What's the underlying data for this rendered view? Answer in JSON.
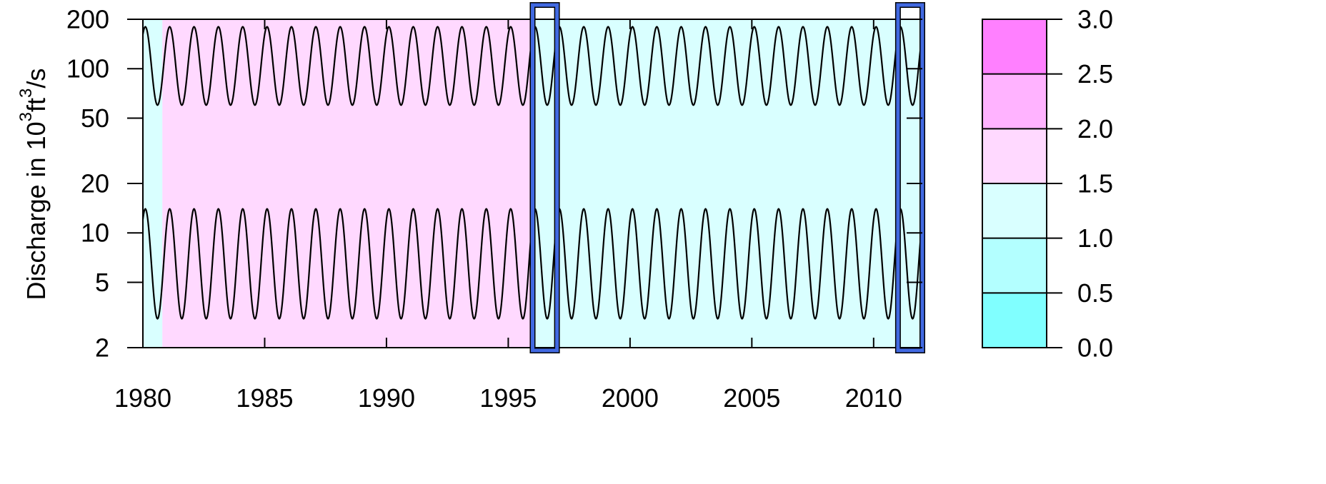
{
  "chart_data": {
    "type": "heatmap",
    "title": "",
    "ylabel": {
      "prefix": "Discharge in 10",
      "sup1": "3",
      "mid": "ft",
      "sup2": "3",
      "suffix": "/s"
    },
    "x": {
      "range": [
        1980,
        2012
      ],
      "ticks": [
        1980,
        1985,
        1990,
        1995,
        2000,
        2005,
        2010
      ],
      "tick_labels": [
        "1980",
        "1985",
        "1990",
        "1995",
        "2000",
        "2005",
        "2010"
      ]
    },
    "y": {
      "scale": "log",
      "range": [
        2,
        200
      ],
      "ticks": [
        2,
        5,
        10,
        20,
        50,
        100,
        200
      ],
      "tick_labels": [
        "2",
        "5",
        "10",
        "20",
        "50",
        "100",
        "200"
      ]
    },
    "colorbar": {
      "levels": [
        0.0,
        0.5,
        1.0,
        1.5,
        2.0,
        2.5,
        3.0
      ],
      "labels": [
        "0.0",
        "0.5",
        "1.0",
        "1.5",
        "2.0",
        "2.5",
        "3.0"
      ],
      "colors": [
        "#80ffff",
        "#b3ffff",
        "#d9ffff",
        "#ffd9ff",
        "#ffb3ff",
        "#ff80ff"
      ]
    },
    "series": [
      {
        "type": "seasonal-cycle",
        "min": 60,
        "max": 180,
        "period_years": 1
      },
      {
        "type": "seasonal-cycle",
        "min": 3,
        "max": 14,
        "period_years": 1
      }
    ],
    "highlight_ranges": [
      [
        1996,
        1997
      ],
      [
        2011,
        2012
      ]
    ],
    "highlight_color": "#4169e1",
    "regions": [
      {
        "x": [
          1980,
          1980.8
        ],
        "y": [
          2,
          200
        ],
        "level": 1.25
      },
      {
        "x": [
          1980.8,
          1996
        ],
        "y": [
          2,
          200
        ],
        "level": 1.75
      },
      {
        "x": [
          1996,
          2012
        ],
        "y": [
          2,
          200
        ],
        "level": 1.25
      }
    ]
  }
}
